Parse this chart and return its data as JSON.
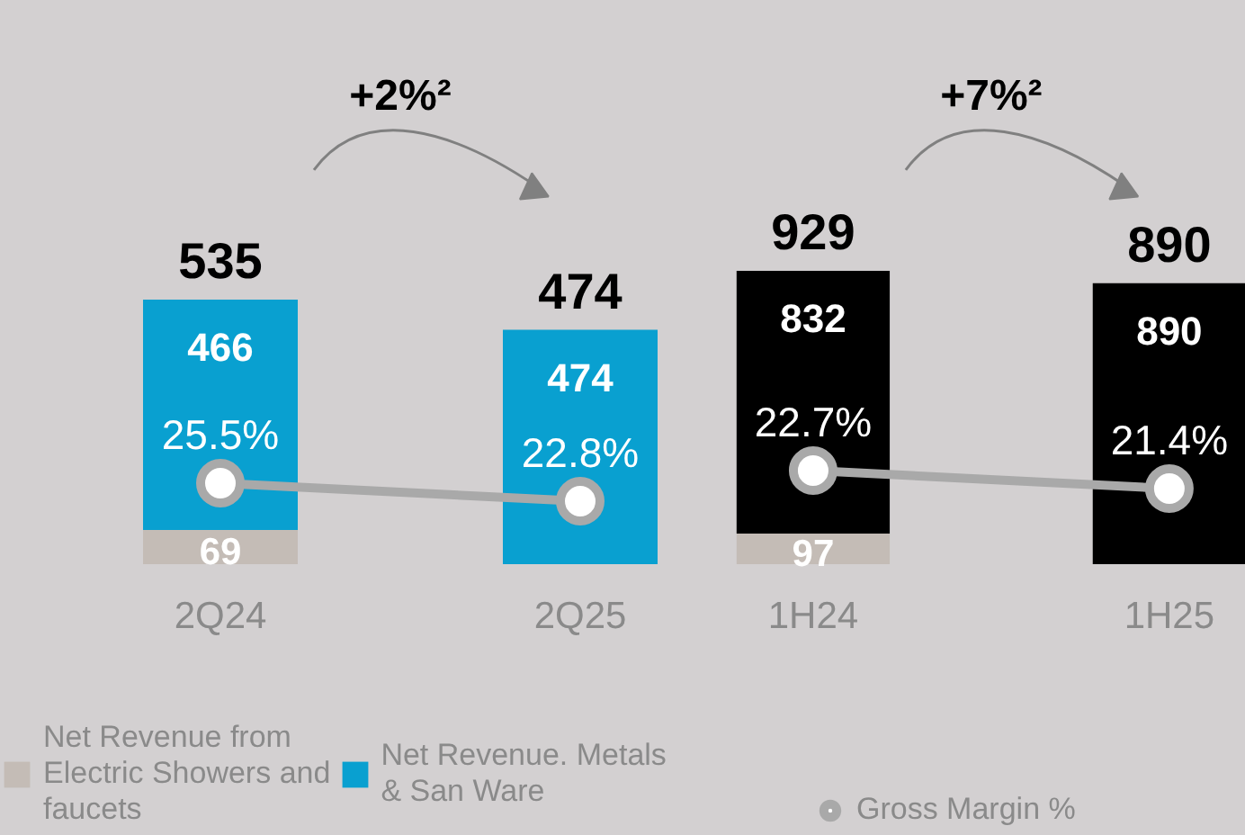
{
  "chart_data": [
    {
      "type": "bar",
      "stacked": true,
      "categories": [
        "2Q24",
        "2Q25"
      ],
      "series": [
        {
          "name": "Net Revenue from Electric Showers and faucets",
          "color": "#c4bcb6",
          "values": [
            69,
            0
          ],
          "value_labels": [
            "69",
            null
          ]
        },
        {
          "name": "Net Revenue. Metals & San Ware",
          "color": "#09a0d0",
          "values": [
            466,
            474
          ],
          "value_labels": [
            "466",
            "474"
          ]
        },
        {
          "type": "line",
          "color": "#a9a9a9",
          "axis": "y2",
          "marker": "circle",
          "values": [
            25.5,
            22.8
          ],
          "value_labels": [
            "25.5%",
            "22.8%"
          ]
        }
      ],
      "totals": [
        "535",
        "474"
      ],
      "annotations": [
        "+2%²"
      ],
      "tick_labels": "x",
      "grid": false,
      "legend": "bottom left"
    },
    {
      "type": "bar",
      "stacked": true,
      "categories": [
        "1H24",
        "1H25"
      ],
      "series": [
        {
          "color": "#c4bcb6",
          "values": [
            97,
            0
          ],
          "value_labels": [
            "97",
            null
          ]
        },
        {
          "color": "#000000",
          "values": [
            832,
            890
          ],
          "value_labels": [
            "832",
            "890"
          ]
        },
        {
          "name": "Gross Margin %",
          "type": "line",
          "color": "#a9a9a9",
          "axis": "y2",
          "marker": "circle",
          "values": [
            22.7,
            21.4
          ],
          "value_labels": [
            "22.7%",
            "21.4%"
          ]
        }
      ],
      "totals": [
        "929",
        "890"
      ],
      "annotations": [
        "+7%²"
      ],
      "tick_labels": "x",
      "grid": false,
      "legend": "bottom left"
    }
  ]
}
